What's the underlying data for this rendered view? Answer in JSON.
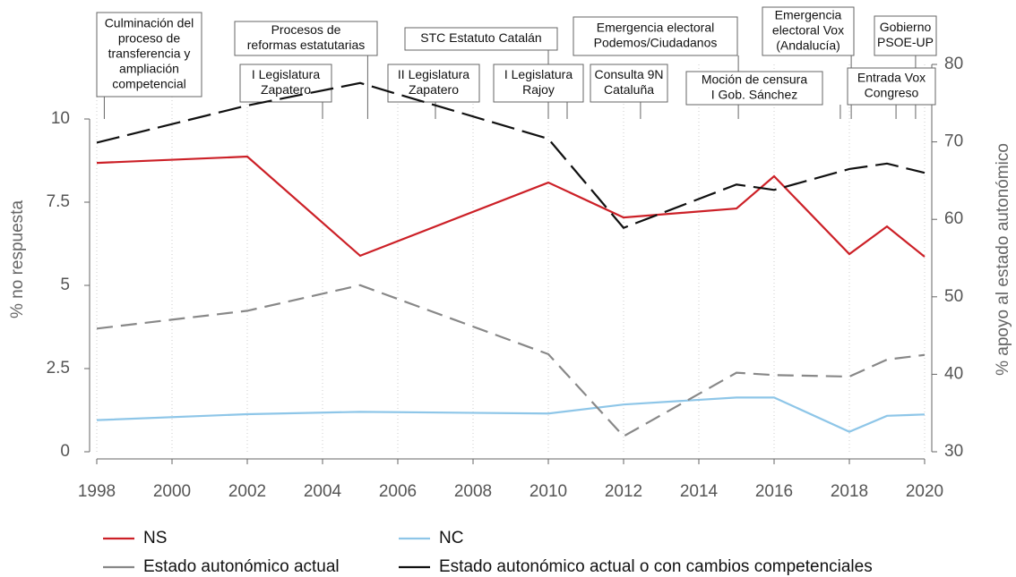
{
  "chart_data": {
    "type": "line",
    "x": [
      1998,
      2002,
      2005,
      2010,
      2012,
      2015,
      2016,
      2018,
      2019,
      2020
    ],
    "xlim": [
      1998,
      2020
    ],
    "xticks": [
      1998,
      2000,
      2002,
      2004,
      2006,
      2008,
      2010,
      2012,
      2014,
      2016,
      2018,
      2020
    ],
    "ylim": [
      0,
      11.64
    ],
    "yticks": [
      0,
      2.5,
      5,
      7.5,
      10
    ],
    "y2lim": [
      30,
      80
    ],
    "y2ticks": [
      30,
      40,
      50,
      60,
      70,
      80
    ],
    "ylabel": "% no respuesta",
    "y2label": "% apoyo al estado autonómico",
    "grid": "vertical-dotted",
    "series": [
      {
        "name": "NS",
        "color": "#cc2027",
        "dash": "solid",
        "axis": "y",
        "values": [
          8.68,
          8.87,
          5.89,
          8.09,
          7.04,
          7.31,
          8.28,
          5.94,
          6.77,
          5.86
        ]
      },
      {
        "name": "NC",
        "color": "#8ec6e8",
        "dash": "solid",
        "axis": "y",
        "values": [
          0.95,
          1.13,
          1.2,
          1.15,
          1.42,
          1.63,
          1.63,
          0.6,
          1.08,
          1.12
        ]
      },
      {
        "name": "Estado autonómico actual",
        "color": "#888888",
        "dash": "long",
        "axis": "y2",
        "values": [
          45.9,
          48.2,
          51.5,
          42.6,
          32.0,
          40.2,
          39.9,
          39.7,
          41.9,
          42.5
        ]
      },
      {
        "name": "Estado autonómico actual o con cambios competenciales",
        "color": "#111111",
        "dash": "longer",
        "axis": "y2",
        "values": [
          69.9,
          74.7,
          77.6,
          70.4,
          58.9,
          64.5,
          63.8,
          66.5,
          67.2,
          66.0
        ]
      }
    ],
    "annotations": [
      {
        "x": 1998.2,
        "lines": [
          "Culminación del",
          "proceso de",
          "transferencia y",
          "ampliación",
          "competencial"
        ]
      },
      {
        "x": 2005.2,
        "lines": [
          "Procesos de",
          "reformas estatutarias"
        ]
      },
      {
        "x": 2004.0,
        "lines": [
          "I Legislatura",
          "Zapatero"
        ]
      },
      {
        "x": 2010.0,
        "lines": [
          "STC Estatuto Catalán"
        ]
      },
      {
        "x": 2007.0,
        "lines": [
          "II Legislatura",
          "Zapatero"
        ]
      },
      {
        "x": 2010.5,
        "lines": [
          "I Legislatura",
          "Rajoy"
        ]
      },
      {
        "x": 2015.05,
        "lines": [
          "Emergencia electoral",
          "Podemos/Ciudadanos"
        ]
      },
      {
        "x": 2012.45,
        "lines": [
          "Consulta 9N",
          "Cataluña"
        ]
      },
      {
        "x": 2017.76,
        "lines": [
          "Moción de censura",
          "I Gob. Sánchez"
        ]
      },
      {
        "x": 2018.05,
        "lines": [
          "Emergencia",
          "electoral Vox",
          "(Andalucía)"
        ]
      },
      {
        "x": 2019.76,
        "lines": [
          "Gobierno",
          "PSOE-UP"
        ]
      },
      {
        "x": 2019.24,
        "lines": [
          "Entrada Vox",
          "Congreso"
        ]
      }
    ]
  }
}
